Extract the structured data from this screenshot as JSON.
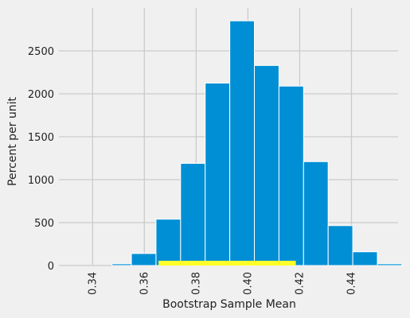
{
  "chart_data": {
    "type": "bar",
    "subtype": "histogram",
    "xlabel": "Bootstrap Sample Mean",
    "ylabel": "Percent per unit",
    "xlim": [
      0.327,
      0.458
    ],
    "ylim": [
      0,
      3000
    ],
    "x_ticks": [
      "0.34",
      "0.36",
      "0.38",
      "0.40",
      "0.42",
      "0.44"
    ],
    "y_ticks": [
      "0",
      "500",
      "1000",
      "1500",
      "2000",
      "2500"
    ],
    "grid": true,
    "bar_color": "#008fd5",
    "bins": [
      {
        "start": 0.3475,
        "end": 0.355,
        "value": 20
      },
      {
        "start": 0.355,
        "end": 0.3645,
        "value": 140
      },
      {
        "start": 0.3645,
        "end": 0.374,
        "value": 540
      },
      {
        "start": 0.374,
        "end": 0.3835,
        "value": 1190
      },
      {
        "start": 0.3835,
        "end": 0.393,
        "value": 2125
      },
      {
        "start": 0.393,
        "end": 0.4025,
        "value": 2850
      },
      {
        "start": 0.4025,
        "end": 0.412,
        "value": 2330
      },
      {
        "start": 0.412,
        "end": 0.4215,
        "value": 2090
      },
      {
        "start": 0.4215,
        "end": 0.431,
        "value": 1210
      },
      {
        "start": 0.431,
        "end": 0.4405,
        "value": 465
      },
      {
        "start": 0.4405,
        "end": 0.45,
        "value": 160
      },
      {
        "start": 0.45,
        "end": 0.4595,
        "value": 20
      }
    ],
    "interval": {
      "start": 0.3655,
      "end": 0.4185,
      "color": "#ffff2a"
    }
  }
}
